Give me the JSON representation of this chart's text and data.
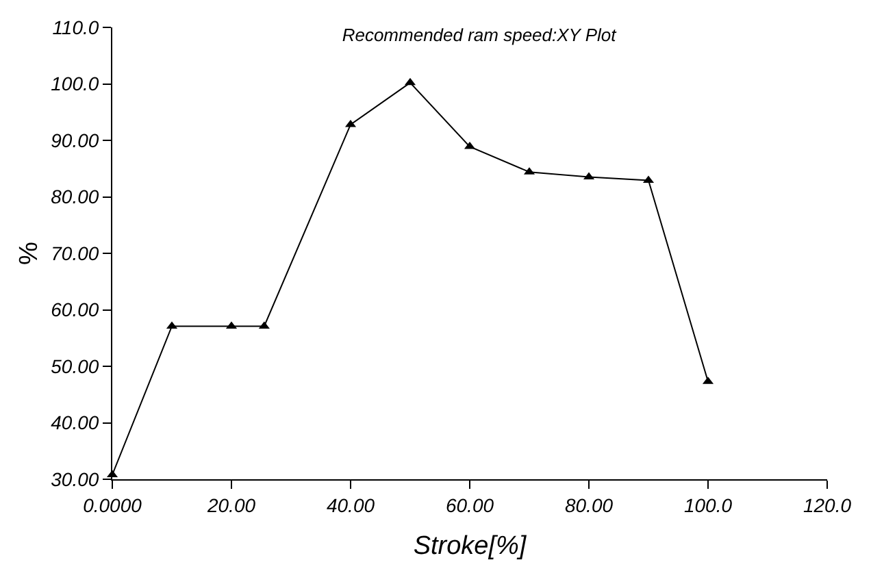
{
  "chart_data": {
    "type": "line",
    "title": "Recommended ram speed:XY Plot",
    "xlabel": "Stroke[%]",
    "ylabel": "%",
    "x": [
      0,
      10,
      20,
      25.5,
      40,
      50,
      60,
      70,
      80,
      90,
      100
    ],
    "series": [
      {
        "color": "#000000",
        "values": [
          30.8,
          57.1,
          57.1,
          57.1,
          92.8,
          100.2,
          88.9,
          84.4,
          83.5,
          82.9,
          47.3
        ]
      }
    ],
    "marker": "triangle",
    "line_style": "solid",
    "xlim": [
      0,
      120
    ],
    "xticks": [
      {
        "value": 0,
        "label": "0.0000"
      },
      {
        "value": 20,
        "label": "20.00"
      },
      {
        "value": 40,
        "label": "40.00"
      },
      {
        "value": 60,
        "label": "60.00"
      },
      {
        "value": 80,
        "label": "80.00"
      },
      {
        "value": 100,
        "label": "100.0"
      },
      {
        "value": 120,
        "label": "120.0"
      }
    ],
    "ylim": [
      30,
      110
    ],
    "yticks": [
      {
        "value": 30,
        "label": "30.00"
      },
      {
        "value": 40,
        "label": "40.00"
      },
      {
        "value": 50,
        "label": "50.00"
      },
      {
        "value": 60,
        "label": "60.00"
      },
      {
        "value": 70,
        "label": "70.00"
      },
      {
        "value": 80,
        "label": "80.00"
      },
      {
        "value": 90,
        "label": "90.00"
      },
      {
        "value": 100,
        "label": "100.0"
      },
      {
        "value": 110,
        "label": "110.0"
      }
    ]
  }
}
